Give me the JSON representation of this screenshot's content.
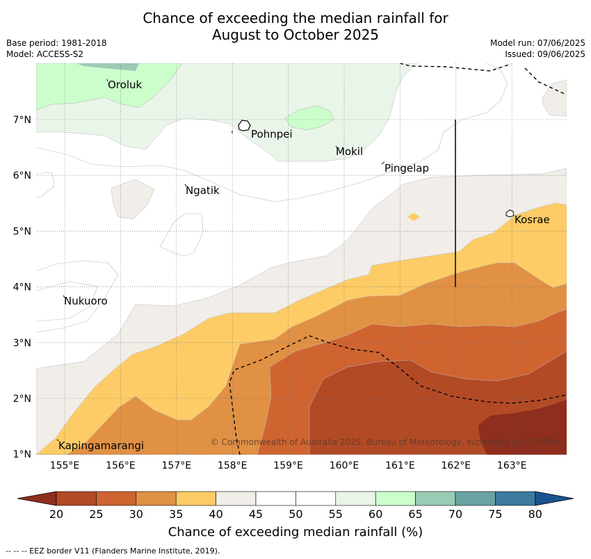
{
  "title_line1": "Chance of exceeding the median rainfall for",
  "title_line2": "August to October 2025",
  "base_period": "Base period: 1981-2018",
  "model": "Model: ACCESS-S2",
  "model_run": "Model run: 07/06/2025",
  "issued": "Issued: 09/06/2025",
  "copyright": "© Commonwealth of Australia 2025, Bureau of Meteorology, supported by COSPPac",
  "lon_labels": [
    "155°E",
    "156°E",
    "157°E",
    "158°E",
    "159°E",
    "160°E",
    "161°E",
    "162°E",
    "163°E"
  ],
  "lat_labels": [
    "7°N",
    "6°N",
    "5°N",
    "4°N",
    "3°N",
    "2°N",
    "1°N"
  ],
  "places": {
    "oroluk": "Oroluk",
    "pohnpei": "Pohnpei",
    "mokil": "Mokil",
    "pingelap": "Pingelap",
    "ngatik": "Ngatik",
    "kosrae": "Kosrae",
    "nukuoro": "Nukuoro",
    "kapingamarangi": "Kapingamarangi"
  },
  "colorbar": {
    "ticks": [
      "20",
      "25",
      "30",
      "35",
      "40",
      "45",
      "50",
      "55",
      "60",
      "65",
      "70",
      "75",
      "80"
    ],
    "colors": [
      "#b34a26",
      "#cf6431",
      "#e19144",
      "#fdcc66",
      "#f1ede8",
      "#ffffff",
      "#ffffff",
      "#eaf5ea",
      "#ccfecc",
      "#9acbb5",
      "#6aa3a3",
      "#3d7aa0"
    ],
    "under_color": "#8e2e1e",
    "over_color": "#1a5490",
    "label": "Chance of exceeding median rainfall (%)"
  },
  "footnote": "--  --  -- EEZ border V11 (Flanders Marine Institute, 2019)."
}
